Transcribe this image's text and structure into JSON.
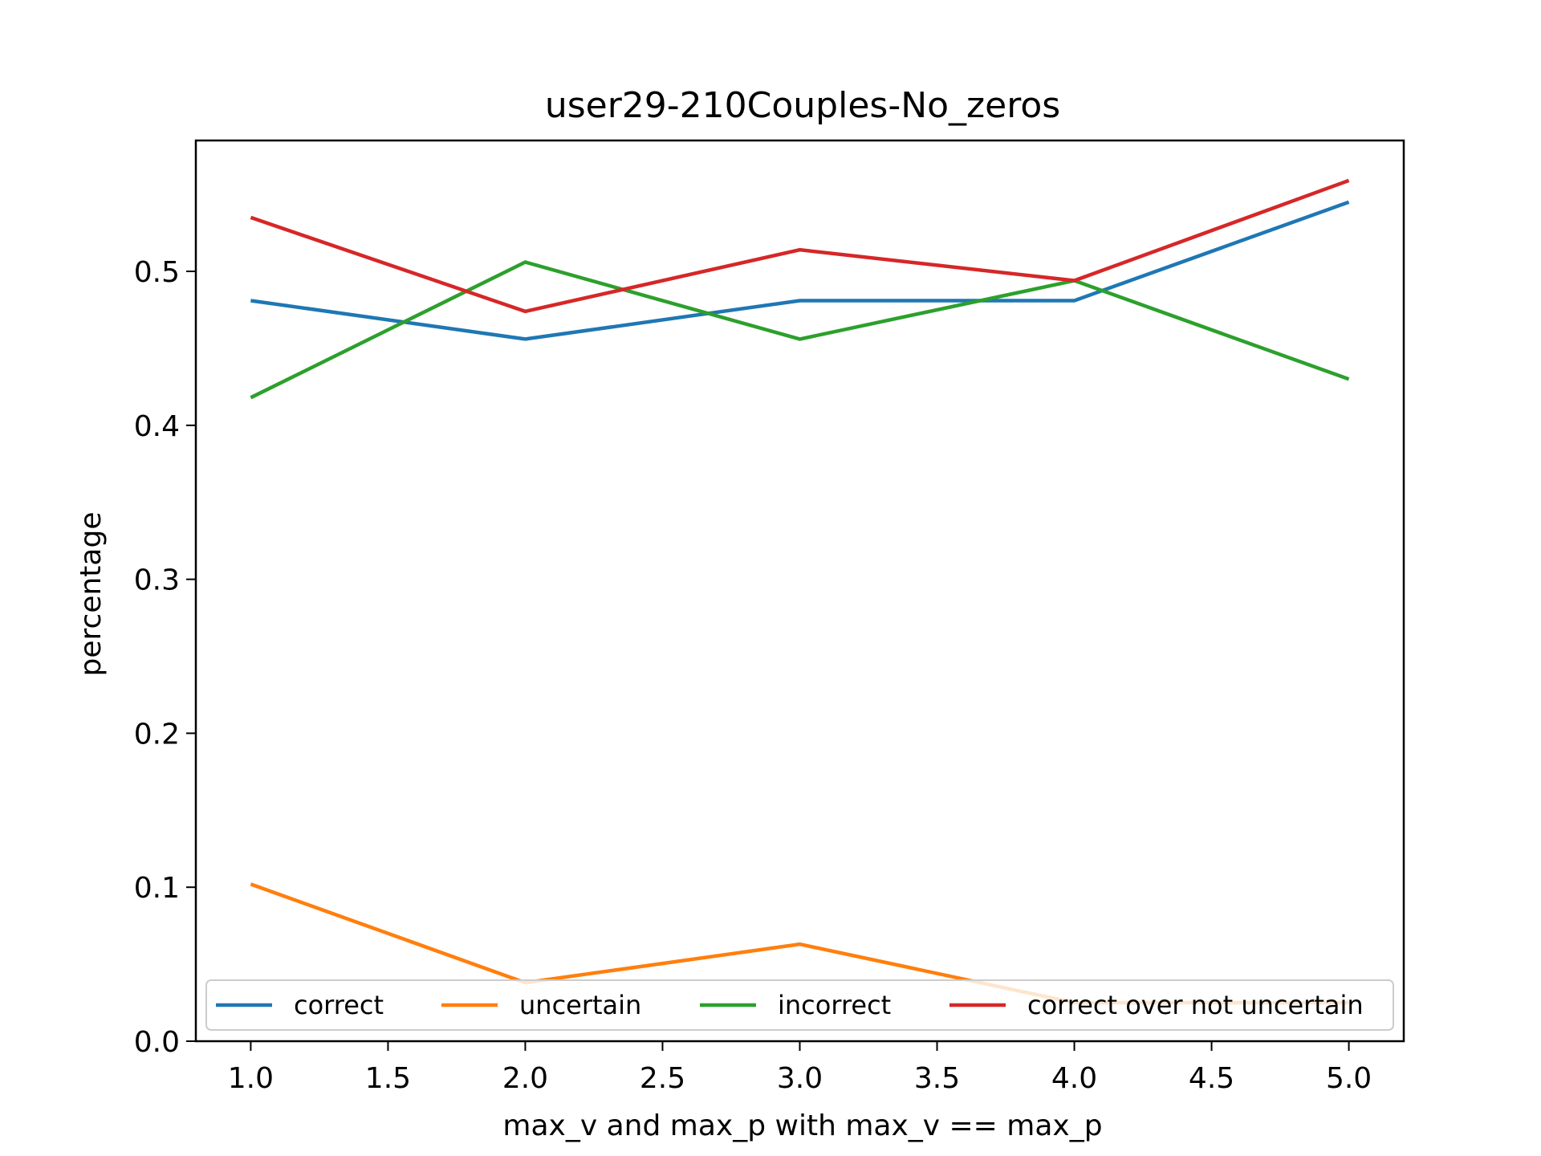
{
  "chart_data": {
    "type": "line",
    "title": "user29-210Couples-No_zeros",
    "xlabel": "max_v and max_p with max_v == max_p",
    "ylabel": "percentage",
    "x": [
      1.0,
      2.0,
      3.0,
      4.0,
      5.0
    ],
    "xlim": [
      0.8,
      5.2
    ],
    "ylim": [
      0.0,
      0.585
    ],
    "xticks": [
      "1.0",
      "1.5",
      "2.0",
      "2.5",
      "3.0",
      "3.5",
      "4.0",
      "4.5",
      "5.0"
    ],
    "yticks": [
      "0.0",
      "0.1",
      "0.2",
      "0.3",
      "0.4",
      "0.5"
    ],
    "grid": false,
    "legend_position": "lower-center",
    "series": [
      {
        "name": "correct",
        "color": "#1f77b4",
        "values": [
          0.481,
          0.456,
          0.481,
          0.481,
          0.545
        ]
      },
      {
        "name": "uncertain",
        "color": "#ff7f0e",
        "values": [
          0.102,
          0.038,
          0.063,
          0.025,
          0.025
        ]
      },
      {
        "name": "incorrect",
        "color": "#2ca02c",
        "values": [
          0.418,
          0.506,
          0.456,
          0.494,
          0.43
        ]
      },
      {
        "name": "correct over not uncertain",
        "color": "#d62728",
        "values": [
          0.535,
          0.474,
          0.514,
          0.494,
          0.559
        ]
      }
    ]
  }
}
